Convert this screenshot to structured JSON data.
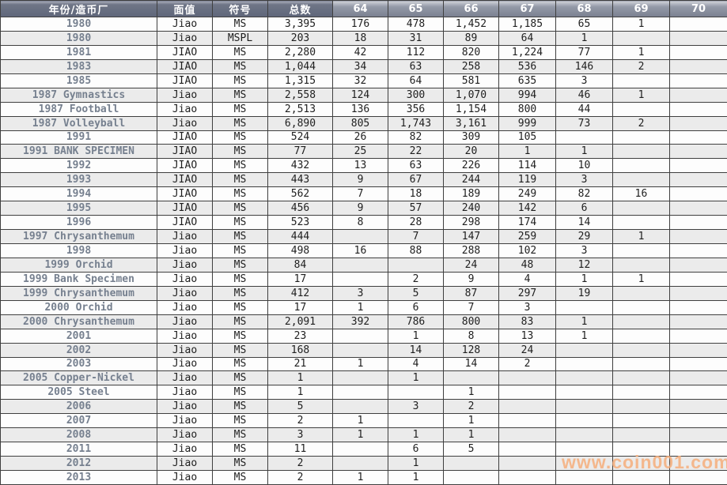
{
  "page": {
    "watermark": "www.coin001.com"
  },
  "colors": {
    "header_bg_dark": "#5f667a",
    "header_bg_light": "#949aa8",
    "header_text": "#ffffff",
    "year_text": "#76808f",
    "data_text": "#1f1f1f",
    "row_stripe": "#ebebeb",
    "grid_border": "#3f3f3f",
    "watermark_color": "#f6ae7c"
  },
  "table": {
    "columns": [
      "年份/造币厂",
      "面值",
      "符号",
      "总数",
      "64",
      "65",
      "66",
      "67",
      "68",
      "69",
      "70"
    ],
    "rows": [
      [
        "1980",
        "Jiao",
        "MS",
        "3,395",
        "176",
        "478",
        "1,452",
        "1,185",
        "65",
        "1",
        ""
      ],
      [
        "1980",
        "Jiao",
        "MSPL",
        "203",
        "18",
        "31",
        "89",
        "64",
        "1",
        "",
        ""
      ],
      [
        "1981",
        "JIAO",
        "MS",
        "2,280",
        "42",
        "112",
        "820",
        "1,224",
        "77",
        "1",
        ""
      ],
      [
        "1983",
        "JIAO",
        "MS",
        "1,044",
        "34",
        "63",
        "258",
        "536",
        "146",
        "2",
        ""
      ],
      [
        "1985",
        "JIAO",
        "MS",
        "1,315",
        "32",
        "64",
        "581",
        "635",
        "3",
        "",
        ""
      ],
      [
        "1987 Gymnastics",
        "Jiao",
        "MS",
        "2,558",
        "124",
        "300",
        "1,070",
        "994",
        "46",
        "1",
        ""
      ],
      [
        "1987 Football",
        "Jiao",
        "MS",
        "2,513",
        "136",
        "356",
        "1,154",
        "800",
        "44",
        "",
        ""
      ],
      [
        "1987 Volleyball",
        "Jiao",
        "MS",
        "6,890",
        "805",
        "1,743",
        "3,161",
        "999",
        "73",
        "2",
        ""
      ],
      [
        "1991",
        "JIAO",
        "MS",
        "524",
        "26",
        "82",
        "309",
        "105",
        "",
        "",
        ""
      ],
      [
        "1991 BANK SPECIMEN",
        "JIAO",
        "MS",
        "77",
        "25",
        "22",
        "20",
        "1",
        "1",
        "",
        ""
      ],
      [
        "1992",
        "JIAO",
        "MS",
        "432",
        "13",
        "63",
        "226",
        "114",
        "10",
        "",
        ""
      ],
      [
        "1993",
        "JIAO",
        "MS",
        "443",
        "9",
        "67",
        "244",
        "119",
        "3",
        "",
        ""
      ],
      [
        "1994",
        "JIAO",
        "MS",
        "562",
        "7",
        "18",
        "189",
        "249",
        "82",
        "16",
        ""
      ],
      [
        "1995",
        "JIAO",
        "MS",
        "456",
        "9",
        "57",
        "240",
        "142",
        "6",
        "",
        ""
      ],
      [
        "1996",
        "JIAO",
        "MS",
        "523",
        "8",
        "28",
        "298",
        "174",
        "14",
        "",
        ""
      ],
      [
        "1997 Chrysanthemum",
        "Jiao",
        "MS",
        "444",
        "",
        "7",
        "147",
        "259",
        "29",
        "1",
        ""
      ],
      [
        "1998",
        "Jiao",
        "MS",
        "498",
        "16",
        "88",
        "288",
        "102",
        "3",
        "",
        ""
      ],
      [
        "1999 Orchid",
        "Jiao",
        "MS",
        "84",
        "",
        "",
        "24",
        "48",
        "12",
        "",
        ""
      ],
      [
        "1999 Bank Specimen",
        "Jiao",
        "MS",
        "17",
        "",
        "2",
        "9",
        "4",
        "1",
        "1",
        ""
      ],
      [
        "1999 Chrysanthemum",
        "Jiao",
        "MS",
        "412",
        "3",
        "5",
        "87",
        "297",
        "19",
        "",
        ""
      ],
      [
        "2000 Orchid",
        "Jiao",
        "MS",
        "17",
        "1",
        "6",
        "7",
        "3",
        "",
        "",
        ""
      ],
      [
        "2000 Chrysanthemum",
        "Jiao",
        "MS",
        "2,091",
        "392",
        "786",
        "800",
        "83",
        "1",
        "",
        ""
      ],
      [
        "2001",
        "Jiao",
        "MS",
        "23",
        "",
        "1",
        "8",
        "13",
        "1",
        "",
        ""
      ],
      [
        "2002",
        "Jiao",
        "MS",
        "168",
        "",
        "14",
        "128",
        "24",
        "",
        "",
        ""
      ],
      [
        "2003",
        "Jiao",
        "MS",
        "21",
        "1",
        "4",
        "14",
        "2",
        "",
        "",
        ""
      ],
      [
        "2005 Copper-Nickel",
        "Jiao",
        "MS",
        "1",
        "",
        "1",
        "",
        "",
        "",
        "",
        ""
      ],
      [
        "2005 Steel",
        "Jiao",
        "MS",
        "1",
        "",
        "",
        "1",
        "",
        "",
        "",
        ""
      ],
      [
        "2006",
        "Jiao",
        "MS",
        "5",
        "",
        "3",
        "2",
        "",
        "",
        "",
        ""
      ],
      [
        "2007",
        "Jiao",
        "MS",
        "2",
        "1",
        "",
        "1",
        "",
        "",
        "",
        ""
      ],
      [
        "2008",
        "Jiao",
        "MS",
        "3",
        "1",
        "1",
        "1",
        "",
        "",
        "",
        ""
      ],
      [
        "2011",
        "Jiao",
        "MS",
        "11",
        "",
        "6",
        "5",
        "",
        "",
        "",
        ""
      ],
      [
        "2012",
        "Jiao",
        "MS",
        "2",
        "",
        "1",
        "",
        "",
        "",
        "",
        ""
      ],
      [
        "2013",
        "Jiao",
        "MS",
        "2",
        "1",
        "1",
        "",
        "",
        "",
        "",
        ""
      ]
    ]
  }
}
